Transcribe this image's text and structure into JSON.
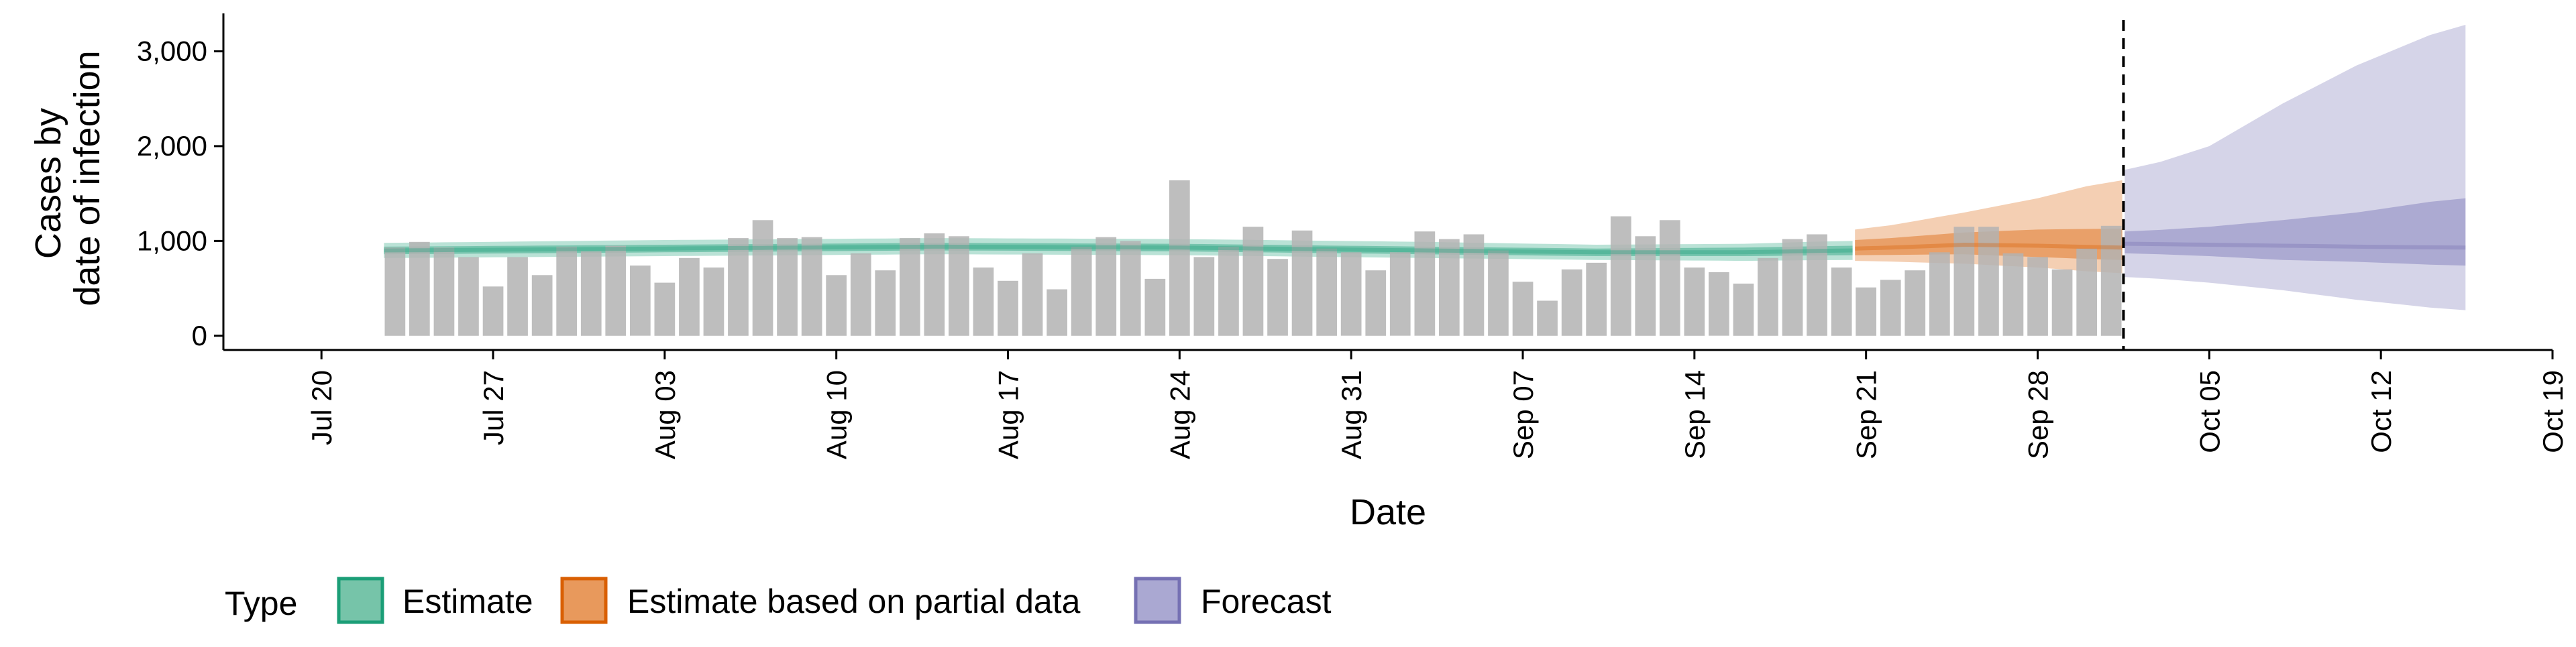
{
  "chart_data": {
    "type": "bar",
    "title": "",
    "xlabel": "Date",
    "ylabel_lines": [
      "Cases by",
      "date of infection"
    ],
    "x_axis": {
      "type": "date",
      "range": [
        "2020-07-16",
        "2020-10-19"
      ],
      "tick_dates": [
        "2020-07-20",
        "2020-07-27",
        "2020-08-03",
        "2020-08-10",
        "2020-08-17",
        "2020-08-24",
        "2020-08-31",
        "2020-09-07",
        "2020-09-14",
        "2020-09-21",
        "2020-09-28",
        "2020-10-05",
        "2020-10-12",
        "2020-10-19"
      ],
      "tick_labels": [
        "Jul 20",
        "Jul 27",
        "Aug 03",
        "Aug 10",
        "Aug 17",
        "Aug 24",
        "Aug 31",
        "Sep 07",
        "Sep 14",
        "Sep 21",
        "Sep 28",
        "Oct 05",
        "Oct 12",
        "Oct 19"
      ]
    },
    "y_axis": {
      "range": [
        -150,
        3400
      ],
      "ticks": [
        0,
        1000,
        2000,
        3000
      ],
      "tick_labels": [
        "0",
        "1,000",
        "2,000",
        "3,000"
      ]
    },
    "grid": false,
    "forecast_date": "2020-10-01",
    "colors": {
      "bars": "#b3b3b3",
      "Estimate": "#1b9e77",
      "Estimate based on partial data": "#d95f02",
      "Forecast": "#7570b3"
    },
    "bars": {
      "start_date": "2020-07-23",
      "end_date": "2020-10-01",
      "values": [
        930,
        990,
        930,
        830,
        520,
        830,
        640,
        940,
        890,
        950,
        740,
        560,
        820,
        720,
        1030,
        1220,
        1030,
        1040,
        640,
        870,
        690,
        1030,
        1080,
        1050,
        720,
        580,
        870,
        490,
        940,
        1040,
        1000,
        600,
        1640,
        830,
        940,
        1150,
        810,
        1110,
        920,
        880,
        690,
        880,
        1100,
        1020,
        1070,
        900,
        570,
        370,
        700,
        770,
        1260,
        1050,
        1220,
        720,
        670,
        550,
        820,
        1020,
        1070,
        720,
        510,
        590,
        690,
        880,
        1150,
        1150,
        870,
        830,
        700,
        920,
        1160
      ]
    },
    "legend": {
      "title": "Type",
      "position": "bottom",
      "entries": [
        "Estimate",
        "Estimate based on partial data",
        "Forecast"
      ]
    },
    "series": [
      {
        "name": "Estimate",
        "start_date": "2020-07-23",
        "end_date": "2020-09-20",
        "knots": [
          {
            "date": "2020-07-23",
            "median": 900,
            "inner": [
              860,
              940
            ],
            "outer": [
              820,
              980
            ]
          },
          {
            "date": "2020-08-03",
            "median": 920,
            "inner": [
              880,
              960
            ],
            "outer": [
              840,
              1010
            ]
          },
          {
            "date": "2020-08-14",
            "median": 940,
            "inner": [
              900,
              980
            ],
            "outer": [
              860,
              1030
            ]
          },
          {
            "date": "2020-08-24",
            "median": 930,
            "inner": [
              890,
              970
            ],
            "outer": [
              850,
              1020
            ]
          },
          {
            "date": "2020-09-03",
            "median": 900,
            "inner": [
              860,
              940
            ],
            "outer": [
              820,
              990
            ]
          },
          {
            "date": "2020-09-10",
            "median": 880,
            "inner": [
              840,
              920
            ],
            "outer": [
              800,
              960
            ]
          },
          {
            "date": "2020-09-16",
            "median": 880,
            "inner": [
              840,
              930
            ],
            "outer": [
              790,
              970
            ]
          },
          {
            "date": "2020-09-20",
            "median": 900,
            "inner": [
              850,
              950
            ],
            "outer": [
              800,
              1000
            ]
          }
        ]
      },
      {
        "name": "Estimate based on partial data",
        "start_date": "2020-09-21",
        "end_date": "2020-10-01",
        "knots": [
          {
            "date": "2020-09-21",
            "median": 920,
            "inner": [
              850,
              1010
            ],
            "outer": [
              790,
              1120
            ]
          },
          {
            "date": "2020-09-25",
            "median": 960,
            "inner": [
              860,
              1090
            ],
            "outer": [
              760,
              1300
            ]
          },
          {
            "date": "2020-09-28",
            "median": 950,
            "inner": [
              830,
              1120
            ],
            "outer": [
              720,
              1450
            ]
          },
          {
            "date": "2020-10-01",
            "median": 930,
            "inner": [
              800,
              1130
            ],
            "outer": [
              660,
              1640
            ]
          }
        ]
      },
      {
        "name": "Forecast",
        "start_date": "2020-10-02",
        "end_date": "2020-10-15",
        "knots": [
          {
            "date": "2020-10-02",
            "median": 970,
            "inner": [
              870,
              1100
            ],
            "outer": [
              620,
              1750
            ]
          },
          {
            "date": "2020-10-05",
            "median": 960,
            "inner": [
              840,
              1150
            ],
            "outer": [
              560,
              2000
            ]
          },
          {
            "date": "2020-10-08",
            "median": 950,
            "inner": [
              800,
              1220
            ],
            "outer": [
              480,
              2450
            ]
          },
          {
            "date": "2020-10-11",
            "median": 940,
            "inner": [
              780,
              1300
            ],
            "outer": [
              380,
              2850
            ]
          },
          {
            "date": "2020-10-15",
            "median": 930,
            "inner": [
              740,
              1450
            ],
            "outer": [
              270,
              3280
            ]
          }
        ]
      }
    ]
  }
}
